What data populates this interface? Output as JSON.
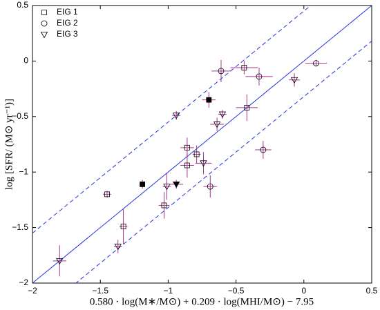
{
  "chart_data": {
    "type": "scatter",
    "x_label": "0.580 · log(M∗/M⊙) + 0.209 · log(MHI/M⊙) − 7.95",
    "y_label": "log [SFR/ (M⊙ yr⁻¹)]",
    "xlim": [
      -2,
      0.5
    ],
    "ylim": [
      -2,
      0.5
    ],
    "xticks": [
      {
        "value": -2,
        "label": "−2"
      },
      {
        "value": -1.5,
        "label": "−1.5"
      },
      {
        "value": -1,
        "label": "−1"
      },
      {
        "value": -0.5,
        "label": "−0.5"
      },
      0,
      0.5
    ],
    "yticks": [
      {
        "value": -2,
        "label": "−2"
      },
      {
        "value": -1.5,
        "label": "−1.5"
      },
      {
        "value": -1,
        "label": "−1"
      },
      {
        "value": -0.5,
        "label": "−0.5"
      },
      0,
      0.5
    ],
    "legend": "upper left",
    "error_color": "#a8308f",
    "marker_color": "#000000",
    "lines": [
      {
        "slope": 1,
        "intercept": 0,
        "style": "solid",
        "color": "#2233dd"
      },
      {
        "slope": 1,
        "intercept": 0.45,
        "style": "dashed",
        "color": "#2233dd"
      },
      {
        "slope": 1,
        "intercept": -0.32,
        "style": "dashed",
        "color": "#2233dd"
      }
    ],
    "series": [
      {
        "name": "EIG 1",
        "marker": "square",
        "x": [
          -1.45,
          -1.33,
          -1.03,
          -0.86,
          -0.86,
          -0.79,
          -0.44,
          -0.42,
          -1.19,
          -0.7
        ],
        "values": [
          -1.2,
          -1.49,
          -1.3,
          -0.94,
          -0.78,
          -0.84,
          -0.06,
          -0.42,
          -1.11,
          -0.35
        ],
        "xerr": [
          0.03,
          0.03,
          0.04,
          0.05,
          0.05,
          0.03,
          0.1,
          0.08,
          0.02,
          0.05
        ],
        "yerr": [
          0.03,
          0.16,
          0.12,
          0.11,
          0.09,
          0.08,
          0.06,
          0.12,
          0.04,
          0.07
        ],
        "filled": [
          false,
          false,
          false,
          false,
          false,
          false,
          false,
          false,
          true,
          true
        ]
      },
      {
        "name": "EIG 2",
        "marker": "circle",
        "x": [
          -0.61,
          -0.33,
          0.09,
          -0.3,
          -0.69
        ],
        "values": [
          -0.09,
          -0.14,
          -0.02,
          -0.8,
          -1.13
        ],
        "xerr": [
          0.07,
          0.1,
          0.08,
          0.06,
          0.05
        ],
        "yerr": [
          0.1,
          0.08,
          0.03,
          0.08,
          0.1
        ],
        "filled": [
          false,
          false,
          false,
          false,
          false
        ]
      },
      {
        "name": "EIG 3",
        "marker": "triangle",
        "x": [
          -1.8,
          -1.37,
          -1.01,
          -0.94,
          -0.74,
          -0.64,
          -0.6,
          -0.07,
          -0.94
        ],
        "values": [
          -1.8,
          -1.67,
          -1.13,
          -0.49,
          -0.92,
          -0.57,
          -0.48,
          -0.17,
          -1.11
        ],
        "xerr": [
          0.05,
          0.03,
          0.03,
          0.03,
          0.06,
          0.05,
          0.03,
          0.04,
          0.05
        ],
        "yerr": [
          0.14,
          0.06,
          0.12,
          0.04,
          0.1,
          0.06,
          0.04,
          0.06,
          0.04
        ],
        "filled": [
          false,
          false,
          false,
          false,
          false,
          false,
          false,
          false,
          true
        ]
      }
    ]
  }
}
